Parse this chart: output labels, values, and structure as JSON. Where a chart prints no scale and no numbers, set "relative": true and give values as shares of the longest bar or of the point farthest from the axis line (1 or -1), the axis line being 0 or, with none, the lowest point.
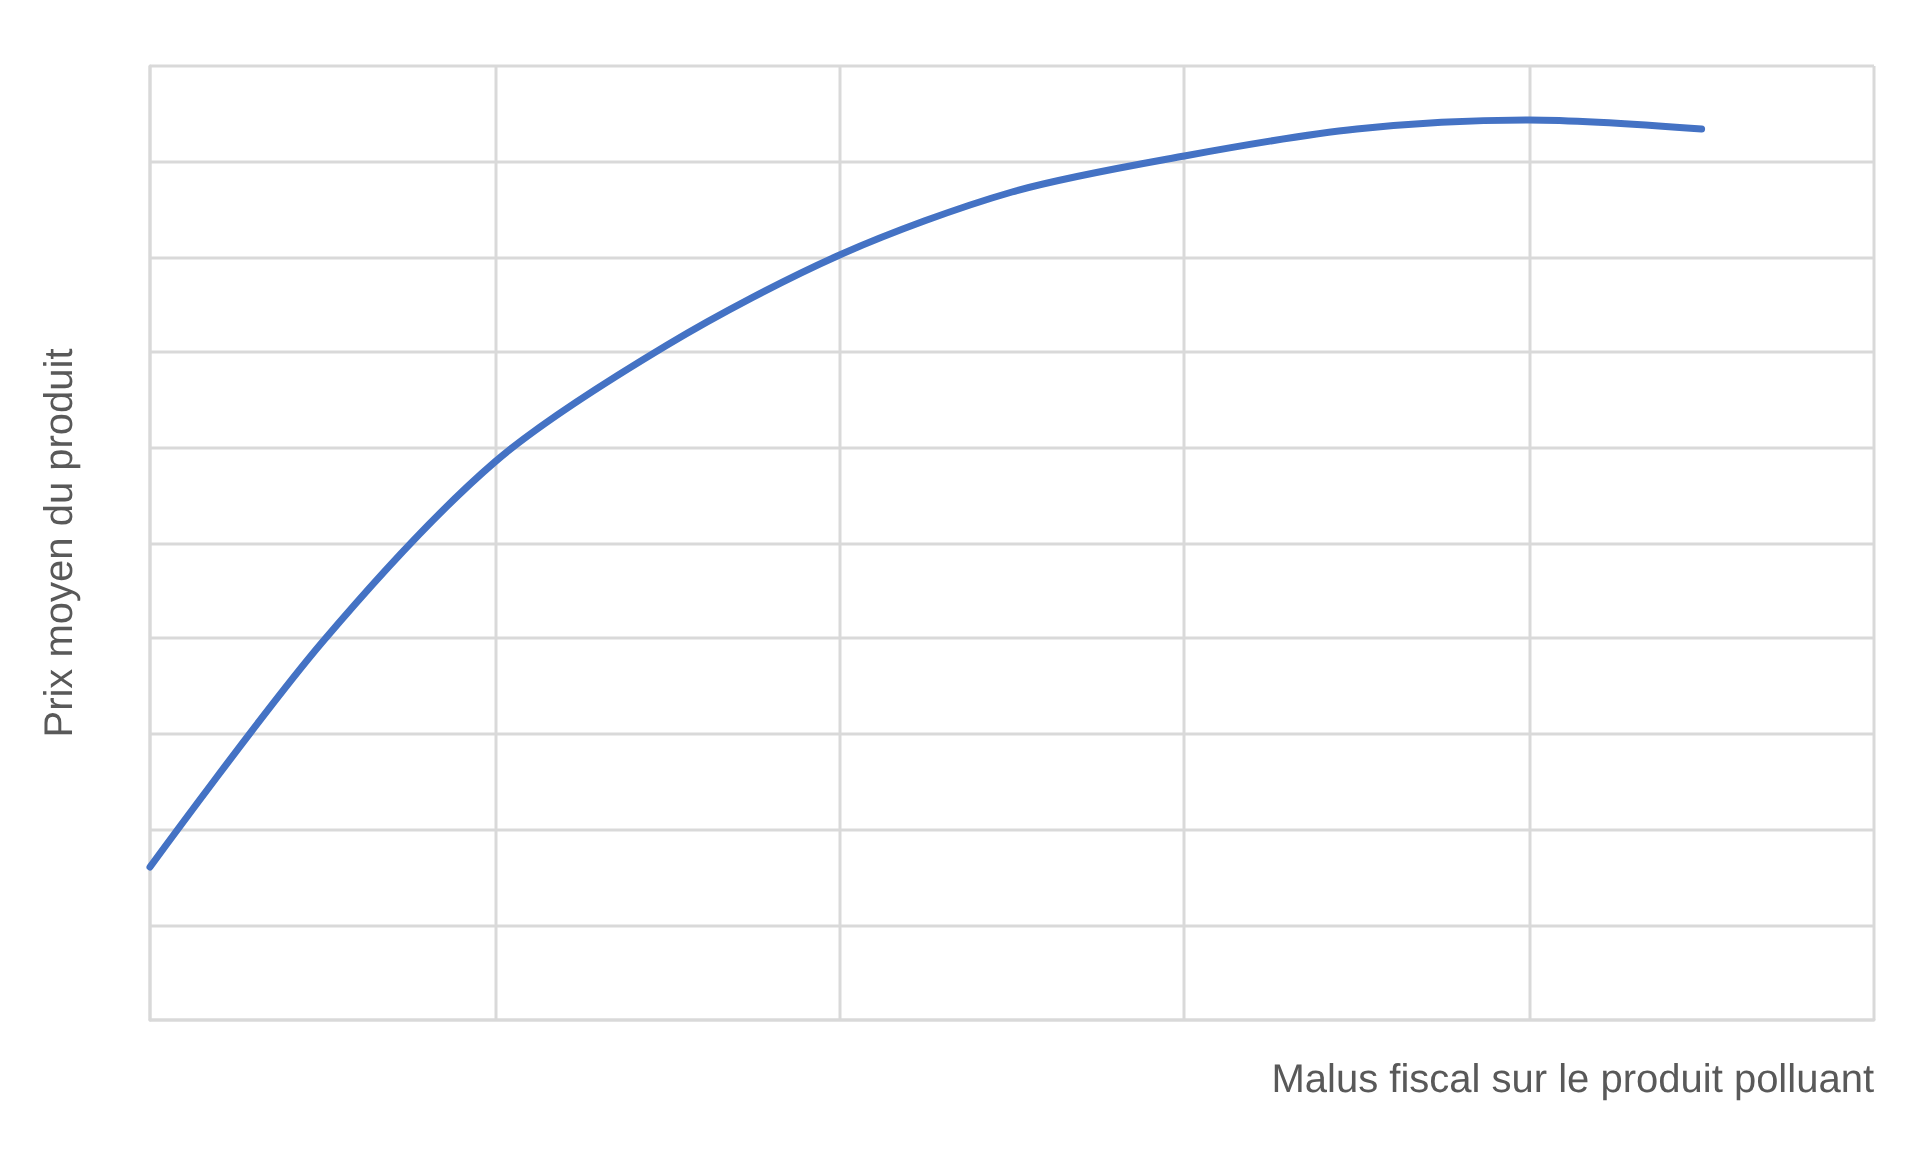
{
  "chart_data": {
    "type": "line",
    "relative": true,
    "xlabel": "Malus fiscal sur le produit polluant",
    "ylabel": "Prix moyen du produit",
    "categories": [
      null,
      null,
      null,
      null,
      null,
      null,
      null,
      null,
      null,
      null,
      null
    ],
    "series": [
      {
        "color": "#4472c4",
        "values": [
          0.17,
          0.42,
          0.62,
          0.75,
          0.85,
          0.92,
          0.96,
          0.99,
          1,
          0.99,
          null
        ]
      }
    ],
    "grid": true,
    "marker": "none",
    "line_style": "solid"
  }
}
